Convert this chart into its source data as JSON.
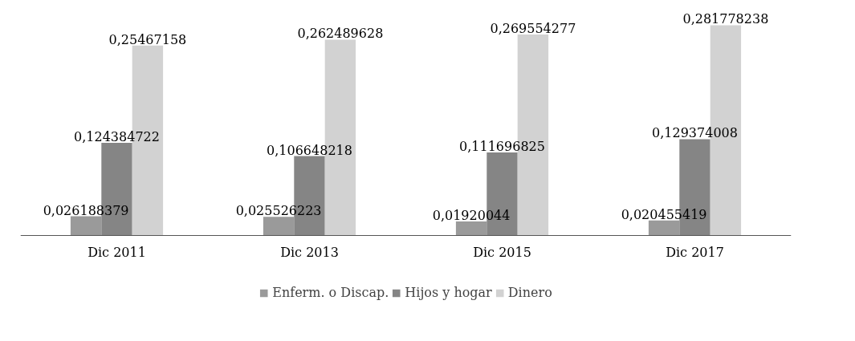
{
  "chart_data": {
    "type": "bar",
    "categories": [
      "Dic 2011",
      "Dic 2013",
      "Dic 2015",
      "Dic 2017"
    ],
    "series": [
      {
        "name": "Enferm. o Discap.",
        "color": "#9a9a9a",
        "values": [
          0.026188379,
          0.025526223,
          0.01920044,
          0.020455419
        ],
        "value_labels": [
          "0,026188379",
          "0,025526223",
          "0,01920044",
          "0,020455419"
        ]
      },
      {
        "name": "Hijos y hogar",
        "color": "#858585",
        "values": [
          0.124384722,
          0.106648218,
          0.111696825,
          0.129374008
        ],
        "value_labels": [
          "0,124384722",
          "0,106648218",
          "0,111696825",
          "0,129374008"
        ]
      },
      {
        "name": "Dinero",
        "color": "#d2d2d2",
        "values": [
          0.25467158,
          0.262489628,
          0.269554277,
          0.281778238
        ],
        "value_labels": [
          "0,25467158",
          "0,262489628",
          "0,269554277",
          "0,281778238"
        ]
      }
    ],
    "legend": "bottom"
  }
}
